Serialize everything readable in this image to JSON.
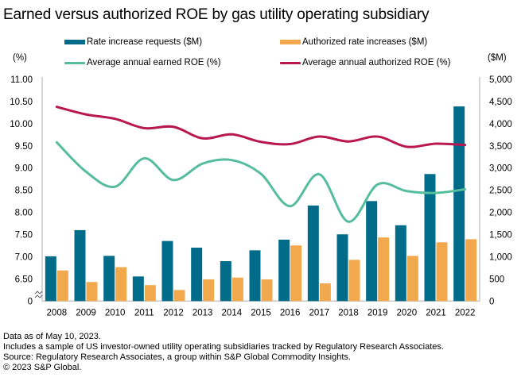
{
  "title": "Earned versus authorized ROE by gas utility operating subsidiary",
  "legend": {
    "rate_requests": "Rate increase requests ($M)",
    "authorized_increases": "Authorized rate  increases ($M)",
    "earned_roe": "Average annual  earned ROE (%)",
    "authorized_roe": "Average annual  authorized ROE (%)"
  },
  "colors": {
    "rate_requests": "#006c8a",
    "authorized_increases": "#f2a84c",
    "earned_roe": "#55bd9e",
    "authorized_roe": "#b8174f",
    "axis": "#c8c8c8"
  },
  "left_unit": "(%)",
  "right_unit": "($M)",
  "footer": [
    "Data as of May 10, 2023.",
    "Includes a sample of US investor-owned utility operating subsidiaries tracked by Regulatory Research Associates.",
    "Source: Regulatory Research Associates, a group within S&P Global Commodity Insights.",
    "© 2023 S&P Global."
  ],
  "chart_data": {
    "type": "bar",
    "title": "Earned versus authorized ROE by gas utility operating subsidiary",
    "categories": [
      "2008",
      "2009",
      "2010",
      "2011",
      "2012",
      "2013",
      "2014",
      "2015",
      "2016",
      "2017",
      "2018",
      "2019",
      "2020",
      "2021",
      "2022"
    ],
    "series": [
      {
        "name": "Rate increase requests ($M)",
        "type": "bar",
        "axis": "right",
        "values": [
          1010,
          1600,
          1020,
          555,
          1355,
          1205,
          900,
          1145,
          1385,
          2155,
          1505,
          2255,
          1710,
          2865,
          4390
        ]
      },
      {
        "name": "Authorized rate  increases ($M)",
        "type": "bar",
        "axis": "right",
        "values": [
          690,
          430,
          765,
          360,
          250,
          490,
          530,
          490,
          1255,
          400,
          930,
          1435,
          1020,
          1325,
          1395
        ]
      },
      {
        "name": "Average annual  earned ROE (%)",
        "type": "line",
        "axis": "left",
        "values": [
          9.58,
          8.92,
          8.58,
          9.22,
          8.73,
          9.1,
          9.18,
          8.87,
          8.14,
          8.86,
          7.79,
          8.63,
          8.48,
          8.44,
          8.52
        ]
      },
      {
        "name": "Average annual  authorized ROE (%)",
        "type": "line",
        "axis": "left",
        "values": [
          10.38,
          10.21,
          10.11,
          9.9,
          9.93,
          9.67,
          9.76,
          9.59,
          9.54,
          9.71,
          9.6,
          9.71,
          9.48,
          9.55,
          9.52
        ]
      }
    ],
    "left_axis": {
      "label": "(%)",
      "ticks": [
        "11.00",
        "10.50",
        "10.00",
        "9.50",
        "9.00",
        "8.50",
        "8.00",
        "7.50",
        "7.00",
        "6.50",
        "0"
      ],
      "tick_values": [
        11.0,
        10.5,
        10.0,
        9.5,
        9.0,
        8.5,
        8.0,
        7.5,
        7.0,
        6.5,
        0
      ],
      "range": [
        0,
        11.0
      ],
      "broken_axis": true
    },
    "right_axis": {
      "label": "($M)",
      "ticks": [
        "5,000",
        "4,500",
        "4,000",
        "3,500",
        "3,000",
        "2,500",
        "2,000",
        "1,500",
        "1,000",
        "500",
        "0"
      ],
      "tick_values": [
        5000,
        4500,
        4000,
        3500,
        3000,
        2500,
        2000,
        1500,
        1000,
        500,
        0
      ],
      "range": [
        0,
        5000
      ]
    },
    "xlabel": "",
    "grid": false,
    "legend_position": "top"
  }
}
